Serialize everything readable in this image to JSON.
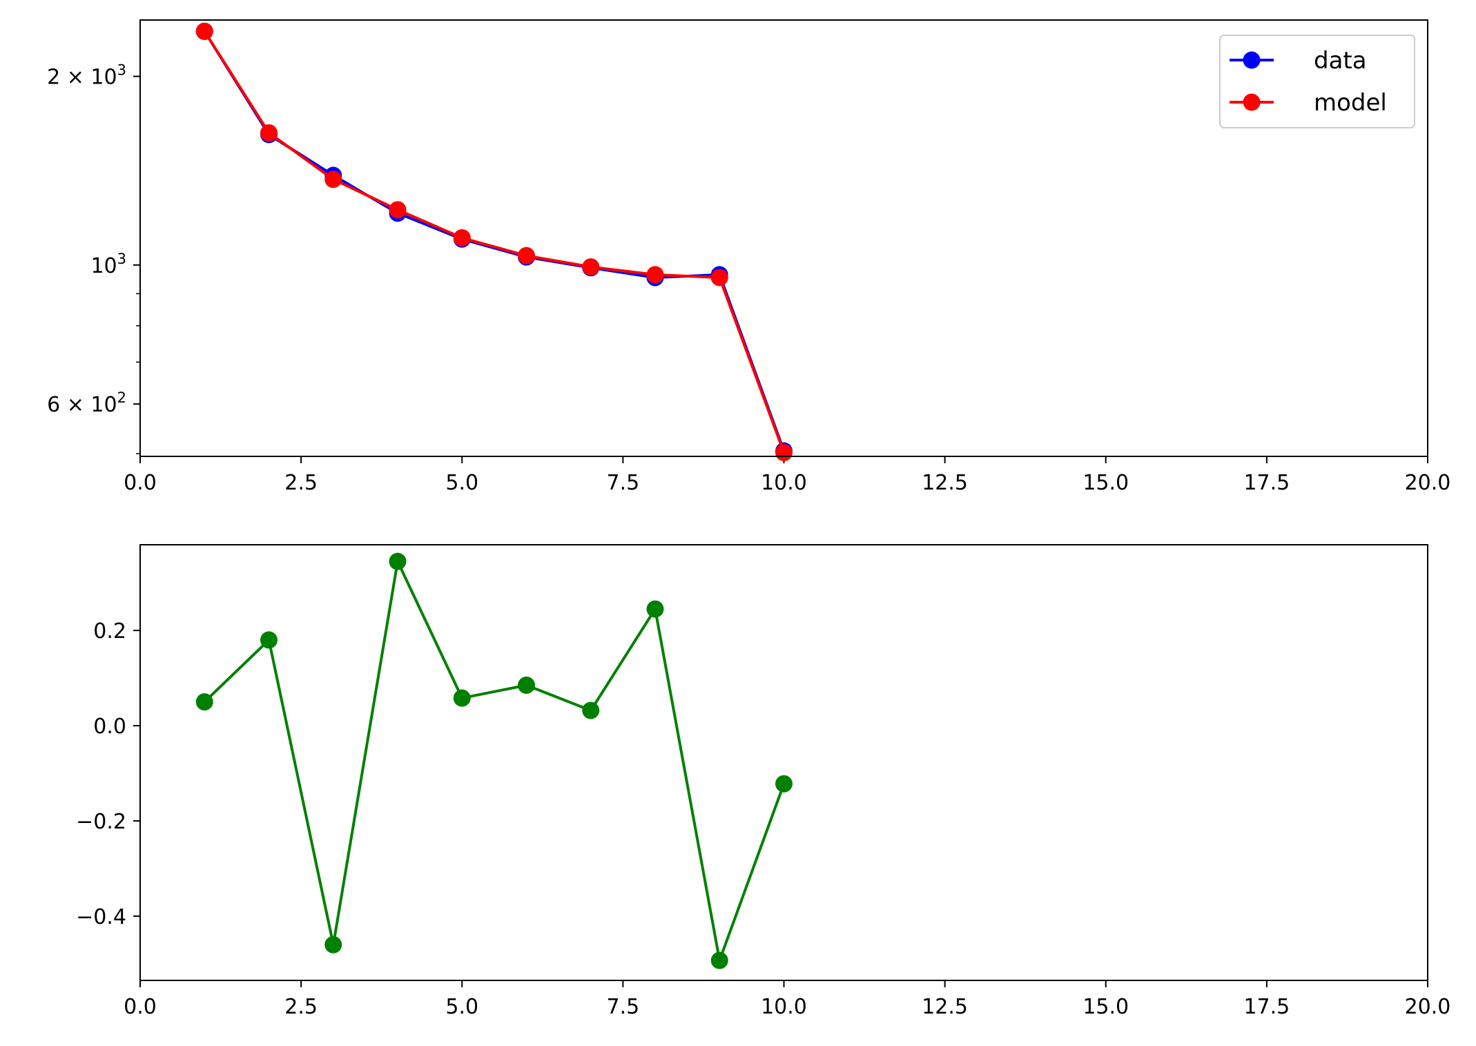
{
  "chart_data": [
    {
      "type": "line",
      "title": "",
      "xlabel": "",
      "ylabel": "",
      "xlim": [
        0,
        20
      ],
      "ylim": [
        495,
        2460
      ],
      "yscale": "log",
      "grid": false,
      "legend_position": "top-right",
      "x_ticks": [
        "0.0",
        "2.5",
        "5.0",
        "7.5",
        "10.0",
        "12.5",
        "15.0",
        "17.5",
        "20.0"
      ],
      "y_ticks": [
        {
          "base": "6 × 10",
          "exp": "2",
          "value": 600
        },
        {
          "base": "10",
          "exp": "3",
          "value": 1000
        },
        {
          "base": "2 × 10",
          "exp": "3",
          "value": 2000
        }
      ],
      "series": [
        {
          "name": "data",
          "color": "#0000ff",
          "x": [
            1,
            2,
            3,
            4,
            5,
            6,
            7,
            8,
            9,
            10
          ],
          "y": [
            2360,
            1615,
            1390,
            1210,
            1100,
            1030,
            990,
            955,
            965,
            505
          ]
        },
        {
          "name": "model",
          "color": "#ff0000",
          "x": [
            1,
            2,
            3,
            4,
            5,
            6,
            7,
            8,
            9,
            10
          ],
          "y": [
            2360,
            1625,
            1370,
            1225,
            1105,
            1035,
            993,
            965,
            955,
            502
          ]
        }
      ]
    },
    {
      "type": "line",
      "title": "",
      "xlabel": "",
      "ylabel": "",
      "xlim": [
        0,
        20
      ],
      "ylim": [
        -0.535,
        0.38
      ],
      "grid": false,
      "x_ticks": [
        "0.0",
        "2.5",
        "5.0",
        "7.5",
        "10.0",
        "12.5",
        "15.0",
        "17.5",
        "20.0"
      ],
      "y_ticks": [
        "−0.4",
        "−0.2",
        "0.0",
        "0.2"
      ],
      "y_tick_values": [
        -0.4,
        -0.2,
        0.0,
        0.2
      ],
      "series": [
        {
          "color": "#008000",
          "x": [
            1,
            2,
            3,
            4,
            5,
            6,
            7,
            8,
            9,
            10
          ],
          "y": [
            0.05,
            0.18,
            -0.46,
            0.345,
            0.058,
            0.085,
            0.032,
            0.245,
            -0.493,
            -0.122
          ]
        }
      ]
    }
  ]
}
